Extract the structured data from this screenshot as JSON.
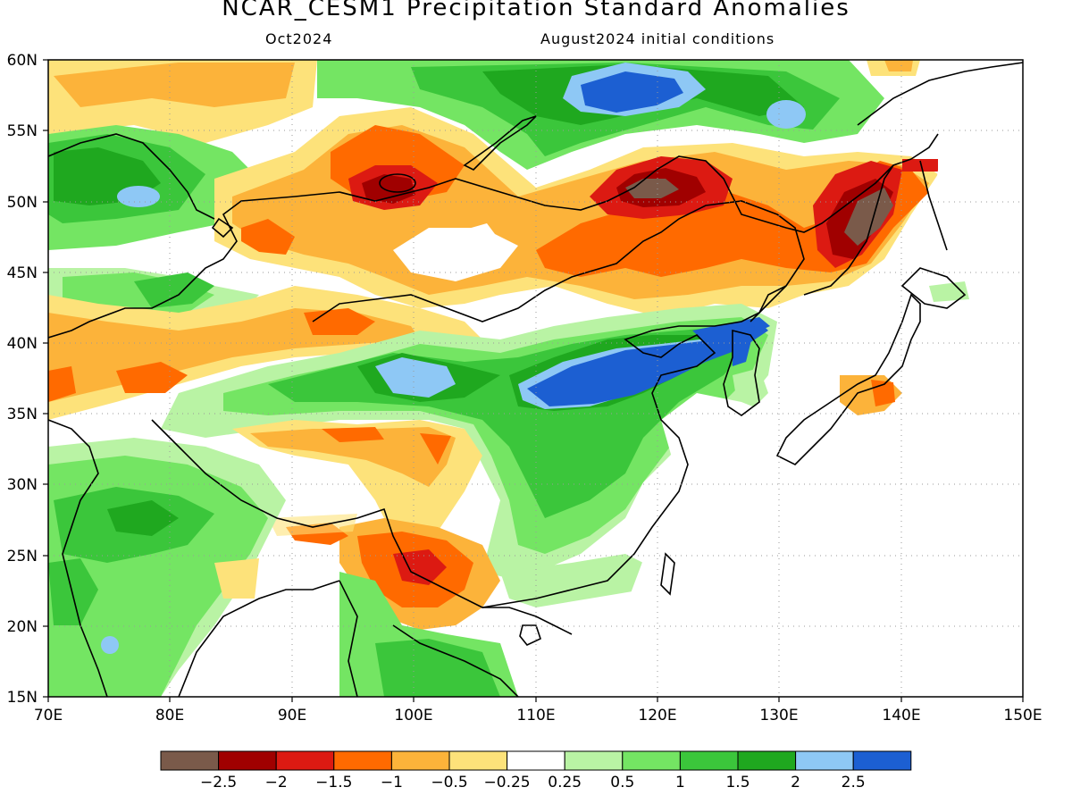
{
  "title": "NCAR_CESM1 Precipitation Standard Anomalies",
  "subtitle_left": "Oct2024",
  "subtitle_right": "August2024 initial conditions",
  "map": {
    "lon_range": [
      70,
      150
    ],
    "lat_range": [
      15,
      60
    ],
    "lon_ticks": [
      "70E",
      "80E",
      "90E",
      "100E",
      "110E",
      "120E",
      "130E",
      "140E",
      "150E"
    ],
    "lat_ticks": [
      "60N",
      "55N",
      "50N",
      "45N",
      "40N",
      "35N",
      "30N",
      "25N",
      "20N",
      "15N"
    ],
    "grid": "dotted"
  },
  "legend": {
    "colors": [
      "#7a5a4a",
      "#a00000",
      "#dc1a12",
      "#ff6a00",
      "#fcb33a",
      "#fde27a",
      "#ffffff",
      "#b9f3a4",
      "#74e563",
      "#3bc63b",
      "#1fa81f",
      "#8ec8f5",
      "#1c5fd2"
    ],
    "labels": [
      "−2.5",
      "−2",
      "−1.5",
      "−1",
      "−0.5",
      "−0.25",
      "0.25",
      "0.5",
      "1",
      "1.5",
      "2",
      "2.5"
    ]
  }
}
